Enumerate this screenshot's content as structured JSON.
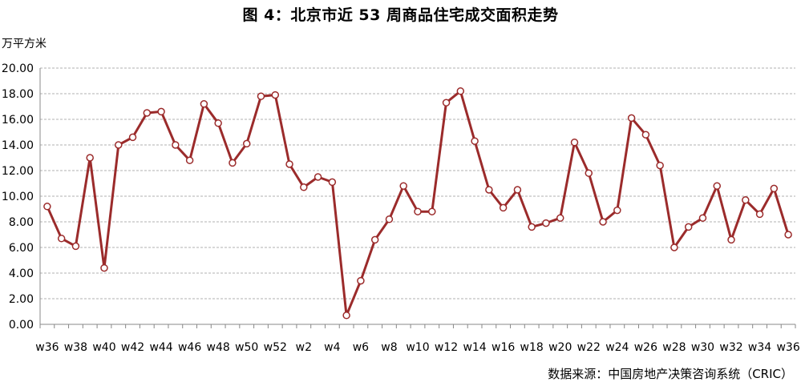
{
  "title": "图 4：北京市近 53 周商品住宅成交面积走势",
  "unit": "万平方米",
  "source": "数据来源：中国房地产决策咨询系统（CRIC）",
  "colors": {
    "line": "#9b2b2b",
    "marker_fill": "#ffffff",
    "grid": "#b0b0b0",
    "axis": "#888888"
  },
  "chart_data": {
    "type": "line",
    "title": "图 4：北京市近 53 周商品住宅成交面积走势",
    "ylabel": "万平方米",
    "xlabel": "",
    "ylim": [
      0,
      20
    ],
    "yticks": [
      "0.00",
      "2.00",
      "4.00",
      "6.00",
      "8.00",
      "10.00",
      "12.00",
      "14.00",
      "16.00",
      "18.00",
      "20.00"
    ],
    "grid": true,
    "legend": "none",
    "categories": [
      "w36",
      "w37",
      "w38",
      "w39",
      "w40",
      "w41",
      "w42",
      "w43",
      "w44",
      "w45",
      "w46",
      "w47",
      "w48",
      "w49",
      "w50",
      "w51",
      "w52",
      "w1",
      "w2",
      "w3",
      "w4",
      "w5",
      "w6",
      "w7",
      "w8",
      "w9",
      "w10",
      "w11",
      "w12",
      "w13",
      "w14",
      "w15",
      "w16",
      "w17",
      "w18",
      "w19",
      "w20",
      "w21",
      "w22",
      "w23",
      "w24",
      "w25",
      "w26",
      "w27",
      "w28",
      "w29",
      "w30",
      "w31",
      "w32",
      "w33",
      "w34",
      "w35",
      "w36"
    ],
    "xtick_labels": [
      "w36",
      "w38",
      "w40",
      "w42",
      "w44",
      "w46",
      "w48",
      "w50",
      "w52",
      "w2",
      "w4",
      "w6",
      "w8",
      "w10",
      "w12",
      "w14",
      "w16",
      "w18",
      "w20",
      "w22",
      "w24",
      "w26",
      "w28",
      "w30",
      "w32",
      "w34",
      "w36"
    ],
    "series": [
      {
        "values": [
          9.2,
          6.7,
          6.1,
          13.0,
          4.4,
          14.0,
          14.6,
          16.5,
          16.6,
          14.0,
          12.8,
          17.2,
          15.7,
          12.6,
          14.1,
          17.8,
          17.9,
          12.5,
          10.7,
          11.5,
          11.1,
          0.7,
          3.4,
          6.6,
          8.2,
          10.8,
          8.8,
          8.8,
          17.3,
          18.2,
          14.3,
          10.5,
          9.1,
          10.5,
          7.6,
          7.9,
          8.3,
          14.2,
          11.8,
          8.0,
          8.9,
          16.1,
          14.8,
          12.4,
          6.0,
          7.6,
          8.3,
          10.8,
          6.6,
          9.7,
          8.6,
          10.6,
          7.0
        ]
      }
    ]
  }
}
